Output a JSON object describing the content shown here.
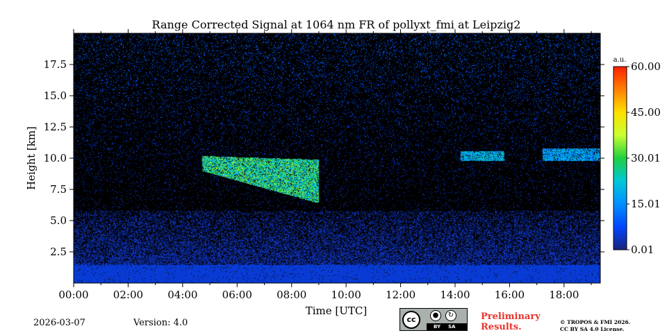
{
  "chart_data": {
    "type": "heatmap",
    "title": "Range Corrected Signal at 1064 nm FR of pollyxt_fmi at Leipzig2",
    "xlabel": "Time [UTC]",
    "ylabel": "Height [km]",
    "xlim_hours": [
      0.0,
      19.33
    ],
    "ylim_km": [
      0.0,
      20.0
    ],
    "x_ticks": [
      {
        "value": 0,
        "label": "00:00"
      },
      {
        "value": 2,
        "label": "02:00"
      },
      {
        "value": 4,
        "label": "04:00"
      },
      {
        "value": 6,
        "label": "06:00"
      },
      {
        "value": 8,
        "label": "08:00"
      },
      {
        "value": 10,
        "label": "10:00"
      },
      {
        "value": 12,
        "label": "12:00"
      },
      {
        "value": 14,
        "label": "14:00"
      },
      {
        "value": 16,
        "label": "16:00"
      },
      {
        "value": 18,
        "label": "18:00"
      }
    ],
    "y_ticks": [
      {
        "value": 2.5,
        "label": "2.5"
      },
      {
        "value": 5.0,
        "label": "5.0"
      },
      {
        "value": 7.5,
        "label": "7.5"
      },
      {
        "value": 10.0,
        "label": "10.0"
      },
      {
        "value": 12.5,
        "label": "12.5"
      },
      {
        "value": 15.0,
        "label": "15.0"
      },
      {
        "value": 17.5,
        "label": "17.5"
      }
    ],
    "colorbar": {
      "unit": "a.u.",
      "range": [
        0.01,
        60.0
      ],
      "ticks": [
        {
          "value": 0.01,
          "label": "0.01"
        },
        {
          "value": 15.01,
          "label": "15.01"
        },
        {
          "value": 30.01,
          "label": "30.01"
        },
        {
          "value": 45.0,
          "label": "45.00"
        },
        {
          "value": 60.0,
          "label": "60.00"
        }
      ],
      "colormap": [
        "#1a237e",
        "#0047ff",
        "#0090ff",
        "#00c8d8",
        "#20d040",
        "#c8ff30",
        "#ffe000",
        "#ff8000",
        "#ff2000"
      ]
    },
    "features": [
      {
        "name": "boundary layer",
        "t0": 0.0,
        "t1": 19.33,
        "h0": 0.0,
        "h1": 1.5,
        "intensity": 4
      },
      {
        "name": "aerosol layer",
        "t0": 0.0,
        "t1": 19.33,
        "h0": 1.5,
        "h1": 5.8,
        "intensity": 2
      },
      {
        "name": "cirrus cloud",
        "t0": 4.7,
        "t1": 9.0,
        "h0": 6.5,
        "h1": 10.2,
        "intensity": 25
      },
      {
        "name": "thin cirrus",
        "t0": 14.2,
        "t1": 15.8,
        "h0": 9.8,
        "h1": 10.6,
        "intensity": 18
      },
      {
        "name": "thin cirrus",
        "t0": 17.2,
        "t1": 19.33,
        "h0": 9.8,
        "h1": 10.8,
        "intensity": 16
      }
    ]
  },
  "footer": {
    "date": "2026-03-07",
    "version": "Version: 4.0",
    "preliminary_line1": "Preliminary",
    "preliminary_line2": "Results.",
    "copyright_line1": "© TROPOS & FMI 2026.",
    "copyright_line2": "CC BY SA 4.0 License.",
    "cc_text": "cc",
    "by_text": "BY",
    "sa_text": "SA"
  }
}
